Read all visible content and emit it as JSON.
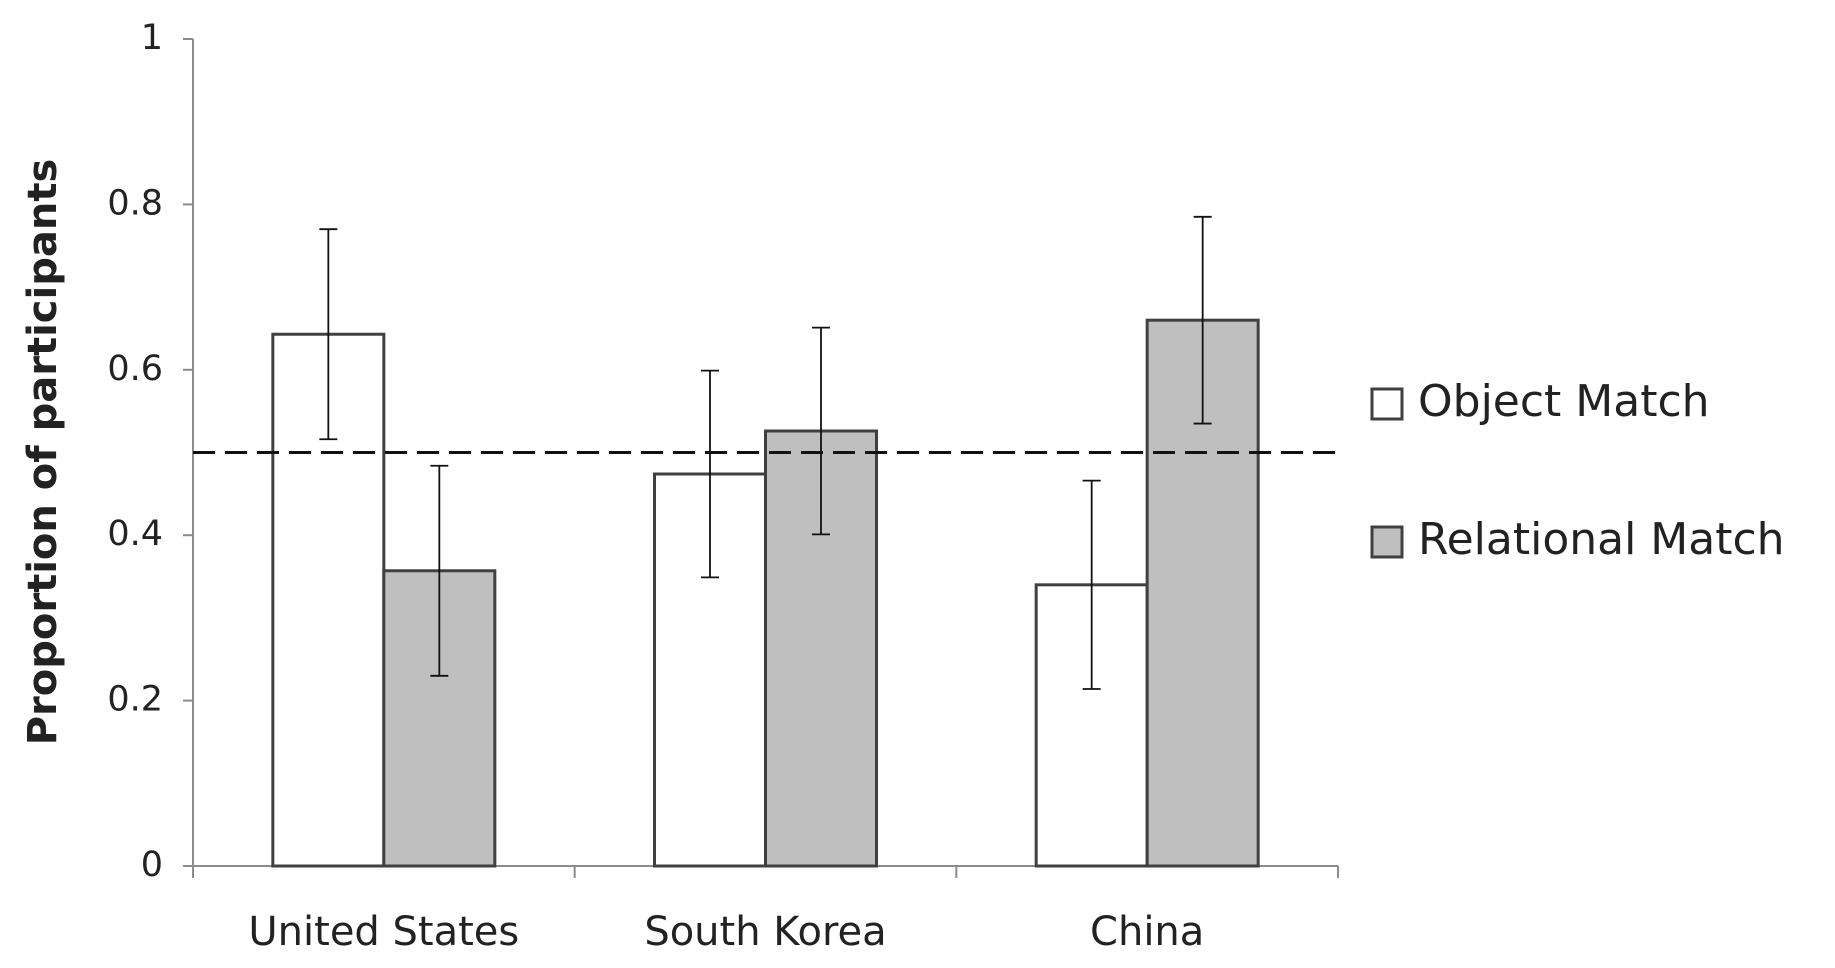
{
  "chart_data": {
    "type": "bar",
    "y_label": "Proportion of participants",
    "categories": [
      "United States",
      "South Korea",
      "China"
    ],
    "series": [
      {
        "name": "Object Match",
        "color": "#ffffff",
        "values": [
          0.643,
          0.474,
          0.34
        ],
        "errors": [
          0.127,
          0.125,
          0.126
        ]
      },
      {
        "name": "Relational Match",
        "color": "#bfbfbf",
        "values": [
          0.357,
          0.526,
          0.66
        ],
        "errors": [
          0.127,
          0.125,
          0.125
        ]
      }
    ],
    "ylim": [
      0,
      1
    ],
    "yticks": [
      0,
      0.2,
      0.4,
      0.6,
      0.8,
      1
    ],
    "reference_line": 0.5,
    "legend": "right"
  }
}
